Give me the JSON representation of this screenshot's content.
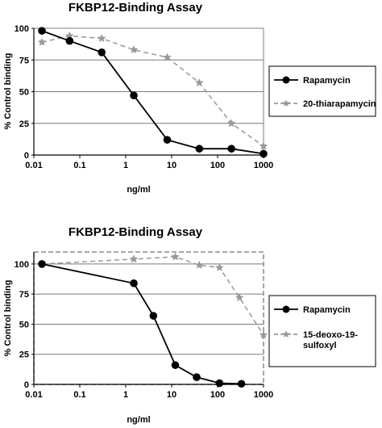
{
  "chart_data": [
    {
      "type": "line",
      "title": "FKBP12-Binding Assay",
      "xlabel": "ng/ml",
      "ylabel": "% Control binding",
      "xscale": "log",
      "xlim": [
        0.01,
        1000
      ],
      "ylim": [
        0,
        100
      ],
      "xticks": [
        "0.01",
        "0.1",
        "1",
        "10",
        "100",
        "1000"
      ],
      "yticks": [
        "0",
        "25",
        "50",
        "75",
        "100"
      ],
      "grid": "horizontal",
      "legend": "right",
      "series": [
        {
          "name": "Rapamycin",
          "color": "#000000",
          "style": "solid",
          "marker": "circle",
          "x": [
            0.015,
            0.06,
            0.3,
            1.5,
            8,
            40,
            200,
            1000
          ],
          "y": [
            98,
            90,
            81,
            47,
            12,
            5,
            5,
            1
          ]
        },
        {
          "name": "20-thiarapamycin",
          "color": "#999999",
          "style": "dashed",
          "marker": "star",
          "x": [
            0.015,
            0.06,
            0.3,
            1.5,
            8,
            40,
            200,
            1000
          ],
          "y": [
            89,
            94,
            92,
            83,
            77,
            57,
            25,
            7
          ]
        }
      ]
    },
    {
      "type": "line",
      "title": "FKBP12-Binding Assay",
      "xlabel": "ng/ml",
      "ylabel": "% Control binding",
      "xscale": "log",
      "xlim": [
        0.01,
        1000
      ],
      "ylim": [
        0,
        110
      ],
      "xticks": [
        "0.01",
        "0.1",
        "1",
        "10",
        "100",
        "1000"
      ],
      "yticks": [
        "0",
        "25",
        "50",
        "75",
        "100"
      ],
      "grid": "horizontal",
      "legend": "right",
      "series": [
        {
          "name": "Rapamycin",
          "color": "#000000",
          "style": "solid",
          "marker": "circle",
          "x": [
            0.015,
            1.5,
            4,
            12,
            35,
            110,
            330
          ],
          "y": [
            100,
            84,
            57,
            16,
            6,
            1,
            0.5
          ]
        },
        {
          "name": "15-deoxo-19-sulfoxyl",
          "color": "#999999",
          "style": "dashed",
          "marker": "star",
          "x": [
            0.015,
            1.5,
            12,
            40,
            110,
            300,
            1000
          ],
          "y": [
            100,
            104,
            106,
            99,
            97,
            72,
            41
          ]
        }
      ]
    }
  ]
}
